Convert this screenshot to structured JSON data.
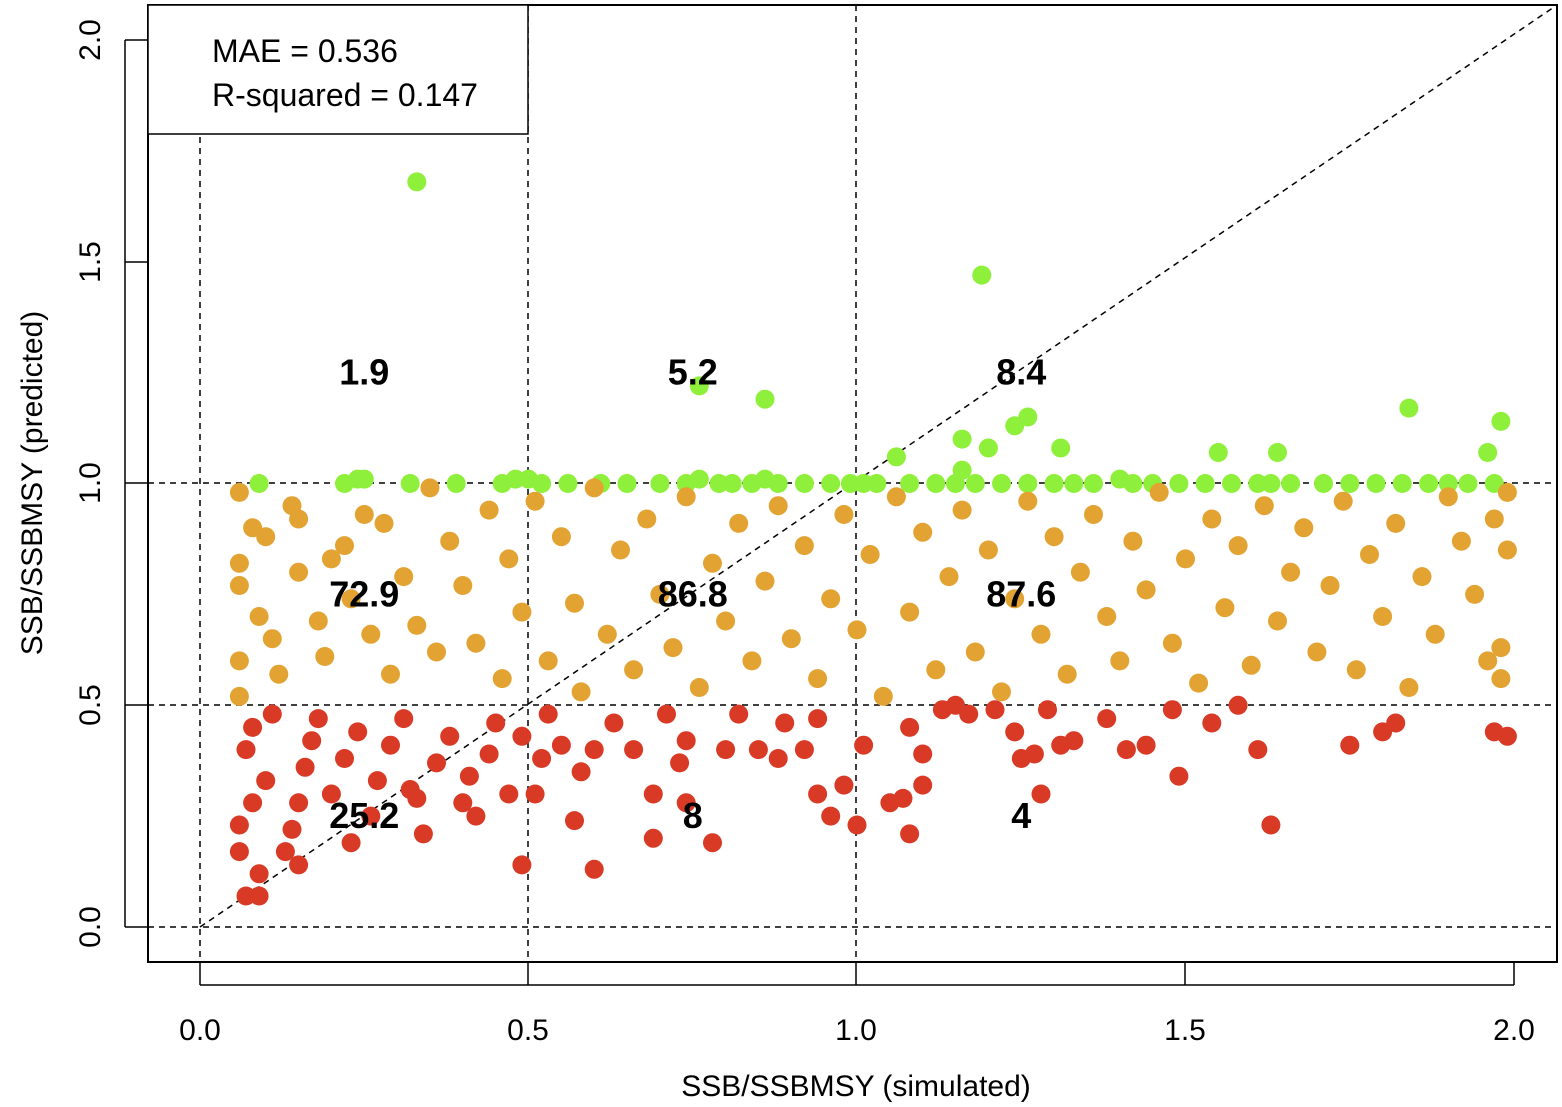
{
  "chart_data": {
    "type": "scatter",
    "title": "",
    "xlabel": "SSB/SSBMSY (simulated)",
    "ylabel": "SSB/SSBMSY (predicted)",
    "xlim": [
      -0.08,
      2.08
    ],
    "ylim": [
      -0.08,
      2.08
    ],
    "x_ticks": [
      "0.0",
      "0.5",
      "1.0",
      "1.5",
      "2.0"
    ],
    "y_ticks": [
      "0.0",
      "0.5",
      "1.0",
      "1.5",
      "2.0"
    ],
    "legend": {
      "position": "top-left",
      "mae_text": "MAE = 0.536",
      "r2_text": "R-squared = 0.147"
    },
    "reference_lines": {
      "vertical_x": [
        0,
        0.5,
        1.0
      ],
      "horizontal_y": [
        0,
        0.5,
        1.0
      ],
      "identity_line": true
    },
    "colors": {
      "high": "#8ef03a",
      "mid": "#e3a332",
      "low": "#d93a25"
    },
    "zone_labels": [
      {
        "x": 0.25,
        "y": 1.25,
        "text": "1.9"
      },
      {
        "x": 0.75,
        "y": 1.25,
        "text": "5.2"
      },
      {
        "x": 1.25,
        "y": 1.25,
        "text": "8.4"
      },
      {
        "x": 0.25,
        "y": 0.75,
        "text": "72.9"
      },
      {
        "x": 0.75,
        "y": 0.75,
        "text": "86.8"
      },
      {
        "x": 1.25,
        "y": 0.75,
        "text": "87.6"
      },
      {
        "x": 0.25,
        "y": 0.25,
        "text": "25.2"
      },
      {
        "x": 0.75,
        "y": 0.25,
        "text": "8"
      },
      {
        "x": 1.25,
        "y": 0.25,
        "text": "4"
      }
    ],
    "series": [
      {
        "category": "high",
        "points": [
          [
            0.33,
            1.68
          ],
          [
            1.19,
            1.47
          ],
          [
            0.76,
            1.22
          ],
          [
            0.86,
            1.19
          ],
          [
            1.24,
            1.13
          ],
          [
            1.26,
            1.15
          ],
          [
            1.16,
            1.1
          ],
          [
            1.2,
            1.08
          ],
          [
            1.31,
            1.08
          ],
          [
            1.06,
            1.06
          ],
          [
            1.16,
            1.03
          ],
          [
            1.55,
            1.07
          ],
          [
            1.64,
            1.07
          ],
          [
            1.84,
            1.17
          ],
          [
            1.96,
            1.07
          ],
          [
            1.98,
            1.14
          ],
          [
            0.09,
            1.0
          ],
          [
            0.22,
            1.0
          ],
          [
            0.24,
            1.01
          ],
          [
            0.25,
            1.01
          ],
          [
            0.32,
            1.0
          ],
          [
            0.39,
            1.0
          ],
          [
            0.46,
            1.0
          ],
          [
            0.48,
            1.01
          ],
          [
            0.5,
            1.01
          ],
          [
            0.52,
            1.0
          ],
          [
            0.56,
            1.0
          ],
          [
            0.61,
            1.0
          ],
          [
            0.65,
            1.0
          ],
          [
            0.7,
            1.0
          ],
          [
            0.74,
            1.0
          ],
          [
            0.76,
            1.01
          ],
          [
            0.79,
            1.0
          ],
          [
            0.81,
            1.0
          ],
          [
            0.84,
            1.0
          ],
          [
            0.86,
            1.01
          ],
          [
            0.88,
            1.0
          ],
          [
            0.92,
            1.0
          ],
          [
            0.96,
            1.0
          ],
          [
            0.99,
            1.0
          ],
          [
            1.01,
            1.0
          ],
          [
            1.03,
            1.0
          ],
          [
            1.08,
            1.0
          ],
          [
            1.12,
            1.0
          ],
          [
            1.15,
            1.0
          ],
          [
            1.18,
            1.0
          ],
          [
            1.22,
            1.0
          ],
          [
            1.26,
            1.0
          ],
          [
            1.3,
            1.0
          ],
          [
            1.33,
            1.0
          ],
          [
            1.36,
            1.0
          ],
          [
            1.4,
            1.01
          ],
          [
            1.42,
            1.0
          ],
          [
            1.45,
            1.0
          ],
          [
            1.49,
            1.0
          ],
          [
            1.53,
            1.0
          ],
          [
            1.57,
            1.0
          ],
          [
            1.61,
            1.0
          ],
          [
            1.63,
            1.0
          ],
          [
            1.66,
            1.0
          ],
          [
            1.71,
            1.0
          ],
          [
            1.75,
            1.0
          ],
          [
            1.79,
            1.0
          ],
          [
            1.83,
            1.0
          ],
          [
            1.87,
            1.0
          ],
          [
            1.9,
            1.0
          ],
          [
            1.93,
            1.0
          ],
          [
            1.97,
            1.0
          ]
        ]
      },
      {
        "category": "mid",
        "points": [
          [
            0.06,
            0.98
          ],
          [
            0.06,
            0.82
          ],
          [
            0.06,
            0.77
          ],
          [
            0.06,
            0.6
          ],
          [
            0.06,
            0.52
          ],
          [
            0.08,
            0.9
          ],
          [
            0.1,
            0.88
          ],
          [
            0.09,
            0.7
          ],
          [
            0.11,
            0.65
          ],
          [
            0.12,
            0.57
          ],
          [
            0.14,
            0.95
          ],
          [
            0.15,
            0.92
          ],
          [
            0.15,
            0.8
          ],
          [
            0.18,
            0.69
          ],
          [
            0.19,
            0.61
          ],
          [
            0.2,
            0.83
          ],
          [
            0.22,
            0.86
          ],
          [
            0.23,
            0.74
          ],
          [
            0.25,
            0.93
          ],
          [
            0.26,
            0.66
          ],
          [
            0.28,
            0.91
          ],
          [
            0.29,
            0.57
          ],
          [
            0.31,
            0.79
          ],
          [
            0.33,
            0.68
          ],
          [
            0.35,
            0.99
          ],
          [
            0.36,
            0.62
          ],
          [
            0.38,
            0.87
          ],
          [
            0.4,
            0.77
          ],
          [
            0.42,
            0.64
          ],
          [
            0.44,
            0.94
          ],
          [
            0.46,
            0.56
          ],
          [
            0.47,
            0.83
          ],
          [
            0.49,
            0.71
          ],
          [
            0.51,
            0.96
          ],
          [
            0.53,
            0.6
          ],
          [
            0.55,
            0.88
          ],
          [
            0.57,
            0.73
          ],
          [
            0.58,
            0.53
          ],
          [
            0.6,
            0.99
          ],
          [
            0.62,
            0.66
          ],
          [
            0.64,
            0.85
          ],
          [
            0.66,
            0.58
          ],
          [
            0.68,
            0.92
          ],
          [
            0.7,
            0.75
          ],
          [
            0.72,
            0.63
          ],
          [
            0.74,
            0.97
          ],
          [
            0.76,
            0.54
          ],
          [
            0.78,
            0.82
          ],
          [
            0.8,
            0.69
          ],
          [
            0.82,
            0.91
          ],
          [
            0.84,
            0.6
          ],
          [
            0.86,
            0.78
          ],
          [
            0.88,
            0.95
          ],
          [
            0.9,
            0.65
          ],
          [
            0.92,
            0.86
          ],
          [
            0.94,
            0.56
          ],
          [
            0.96,
            0.74
          ],
          [
            0.98,
            0.93
          ],
          [
            1.0,
            0.67
          ],
          [
            1.02,
            0.84
          ],
          [
            1.04,
            0.52
          ],
          [
            1.06,
            0.97
          ],
          [
            1.08,
            0.71
          ],
          [
            1.1,
            0.89
          ],
          [
            1.12,
            0.58
          ],
          [
            1.14,
            0.79
          ],
          [
            1.16,
            0.94
          ],
          [
            1.18,
            0.62
          ],
          [
            1.2,
            0.85
          ],
          [
            1.22,
            0.53
          ],
          [
            1.24,
            0.74
          ],
          [
            1.26,
            0.96
          ],
          [
            1.28,
            0.66
          ],
          [
            1.3,
            0.88
          ],
          [
            1.32,
            0.57
          ],
          [
            1.34,
            0.8
          ],
          [
            1.36,
            0.93
          ],
          [
            1.38,
            0.7
          ],
          [
            1.4,
            0.6
          ],
          [
            1.42,
            0.87
          ],
          [
            1.44,
            0.76
          ],
          [
            1.46,
            0.98
          ],
          [
            1.48,
            0.64
          ],
          [
            1.5,
            0.83
          ],
          [
            1.52,
            0.55
          ],
          [
            1.54,
            0.92
          ],
          [
            1.56,
            0.72
          ],
          [
            1.58,
            0.86
          ],
          [
            1.6,
            0.59
          ],
          [
            1.62,
            0.95
          ],
          [
            1.64,
            0.69
          ],
          [
            1.66,
            0.8
          ],
          [
            1.68,
            0.9
          ],
          [
            1.7,
            0.62
          ],
          [
            1.72,
            0.77
          ],
          [
            1.74,
            0.96
          ],
          [
            1.76,
            0.58
          ],
          [
            1.78,
            0.84
          ],
          [
            1.8,
            0.7
          ],
          [
            1.82,
            0.91
          ],
          [
            1.84,
            0.54
          ],
          [
            1.86,
            0.79
          ],
          [
            1.88,
            0.66
          ],
          [
            1.9,
            0.97
          ],
          [
            1.92,
            0.87
          ],
          [
            1.94,
            0.75
          ],
          [
            1.96,
            0.6
          ],
          [
            1.97,
            0.92
          ],
          [
            1.98,
            0.56
          ],
          [
            1.99,
            0.85
          ],
          [
            1.98,
            0.63
          ],
          [
            1.99,
            0.98
          ]
        ]
      },
      {
        "category": "low",
        "points": [
          [
            0.07,
            0.07
          ],
          [
            0.09,
            0.07
          ],
          [
            0.09,
            0.12
          ],
          [
            0.06,
            0.17
          ],
          [
            0.06,
            0.23
          ],
          [
            0.08,
            0.28
          ],
          [
            0.1,
            0.33
          ],
          [
            0.07,
            0.4
          ],
          [
            0.08,
            0.45
          ],
          [
            0.11,
            0.48
          ],
          [
            0.13,
            0.17
          ],
          [
            0.15,
            0.14
          ],
          [
            0.14,
            0.22
          ],
          [
            0.15,
            0.28
          ],
          [
            0.16,
            0.36
          ],
          [
            0.17,
            0.42
          ],
          [
            0.18,
            0.47
          ],
          [
            0.2,
            0.3
          ],
          [
            0.22,
            0.38
          ],
          [
            0.23,
            0.19
          ],
          [
            0.24,
            0.44
          ],
          [
            0.26,
            0.25
          ],
          [
            0.27,
            0.33
          ],
          [
            0.29,
            0.41
          ],
          [
            0.31,
            0.47
          ],
          [
            0.32,
            0.31
          ],
          [
            0.33,
            0.29
          ],
          [
            0.34,
            0.21
          ],
          [
            0.36,
            0.37
          ],
          [
            0.38,
            0.43
          ],
          [
            0.4,
            0.28
          ],
          [
            0.41,
            0.34
          ],
          [
            0.42,
            0.25
          ],
          [
            0.44,
            0.39
          ],
          [
            0.45,
            0.46
          ],
          [
            0.47,
            0.3
          ],
          [
            0.49,
            0.43
          ],
          [
            0.49,
            0.14
          ],
          [
            0.51,
            0.3
          ],
          [
            0.52,
            0.38
          ],
          [
            0.53,
            0.48
          ],
          [
            0.55,
            0.41
          ],
          [
            0.57,
            0.24
          ],
          [
            0.58,
            0.35
          ],
          [
            0.6,
            0.4
          ],
          [
            0.6,
            0.13
          ],
          [
            0.63,
            0.46
          ],
          [
            0.66,
            0.4
          ],
          [
            0.69,
            0.2
          ],
          [
            0.69,
            0.3
          ],
          [
            0.71,
            0.48
          ],
          [
            0.73,
            0.37
          ],
          [
            0.74,
            0.42
          ],
          [
            0.74,
            0.28
          ],
          [
            0.78,
            0.19
          ],
          [
            0.8,
            0.4
          ],
          [
            0.82,
            0.48
          ],
          [
            0.85,
            0.4
          ],
          [
            0.88,
            0.38
          ],
          [
            0.89,
            0.46
          ],
          [
            0.92,
            0.4
          ],
          [
            0.94,
            0.3
          ],
          [
            0.94,
            0.47
          ],
          [
            0.96,
            0.25
          ],
          [
            0.98,
            0.32
          ],
          [
            1.0,
            0.23
          ],
          [
            1.01,
            0.41
          ],
          [
            1.05,
            0.28
          ],
          [
            1.07,
            0.29
          ],
          [
            1.08,
            0.45
          ],
          [
            1.08,
            0.21
          ],
          [
            1.1,
            0.39
          ],
          [
            1.1,
            0.32
          ],
          [
            1.13,
            0.49
          ],
          [
            1.15,
            0.5
          ],
          [
            1.17,
            0.48
          ],
          [
            1.21,
            0.49
          ],
          [
            1.24,
            0.44
          ],
          [
            1.25,
            0.38
          ],
          [
            1.27,
            0.39
          ],
          [
            1.28,
            0.3
          ],
          [
            1.29,
            0.49
          ],
          [
            1.31,
            0.41
          ],
          [
            1.33,
            0.42
          ],
          [
            1.38,
            0.47
          ],
          [
            1.41,
            0.4
          ],
          [
            1.44,
            0.41
          ],
          [
            1.48,
            0.49
          ],
          [
            1.49,
            0.34
          ],
          [
            1.54,
            0.46
          ],
          [
            1.58,
            0.5
          ],
          [
            1.61,
            0.4
          ],
          [
            1.63,
            0.23
          ],
          [
            1.75,
            0.41
          ],
          [
            1.8,
            0.44
          ],
          [
            1.82,
            0.46
          ],
          [
            1.97,
            0.44
          ],
          [
            1.99,
            0.43
          ]
        ]
      }
    ]
  }
}
